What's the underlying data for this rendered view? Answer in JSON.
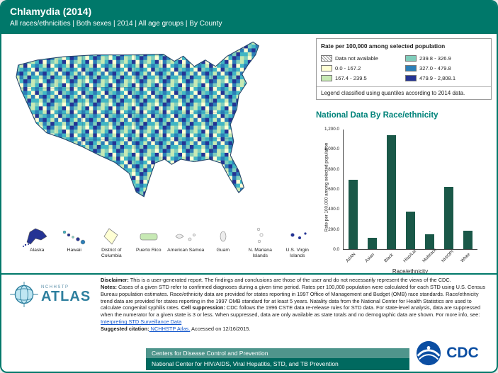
{
  "header": {
    "title": "Chlamydia (2014)",
    "subtitle": "All races/ethnicities | Both sexes | 2014 | All age groups | By County"
  },
  "legend": {
    "title": "Rate per 100,000 among selected population",
    "items": [
      {
        "label": "Data not available",
        "color": "hatch"
      },
      {
        "label": "0.0 - 167.2",
        "color": "#FFFFD4"
      },
      {
        "label": "167.4 - 239.5",
        "color": "#C7E9B4"
      },
      {
        "label": "239.8 - 326.9",
        "color": "#7FCDBB"
      },
      {
        "label": "327.0 - 479.8",
        "color": "#2C7FB8"
      },
      {
        "label": "479.9 - 2,808.1",
        "color": "#253494"
      }
    ],
    "footnote": "Legend classified using quantiles according to 2014 data."
  },
  "insets": [
    {
      "label": "Alaska"
    },
    {
      "label": "Hawaii"
    },
    {
      "label": "District of Columbia"
    },
    {
      "label": "Puerto Rico"
    },
    {
      "label": "American Samoa"
    },
    {
      "label": "Guam"
    },
    {
      "label": "N. Mariana Islands"
    },
    {
      "label": "U.S. Virgin Islands"
    }
  ],
  "chart_data": {
    "type": "bar",
    "title": "National Data By Race/ethnicity",
    "categories": [
      "AI/AN",
      "Asian",
      "Black",
      "Hisp/Lat",
      "Multirace",
      "NH/OPI",
      "White"
    ],
    "values": [
      690,
      115,
      1140,
      375,
      150,
      625,
      185
    ],
    "xlabel": "Race/ethnicity",
    "ylabel": "Rate per 100,000 among selected population",
    "ylim": [
      0,
      1200
    ],
    "yticks": [
      "0.0",
      "200.0",
      "400.0",
      "600.0",
      "800.0",
      "1,000.0",
      "1,200.0"
    ],
    "bar_color": "#1A5848",
    "grid": false,
    "legend_position": "none"
  },
  "footer": {
    "logo": {
      "org": "NCHHSTP",
      "name": "ATLAS"
    },
    "disclaimer_label": "Disclaimer:",
    "disclaimer_text": " This is a user-generated report. The findings and conclusions are those of the user and do not necessarily represent the views of the CDC.",
    "notes_label": "Notes:",
    "notes_text": " Cases of a given STD refer to confirmed diagnoses during a given time period. Rates per 100,000 population were calculated for each STD using U.S. Census Bureau population estimates. Race/ethnicity data are provided for states reporting in 1997 Office of Management and Budget (OMB) race standards. Race/ethnicity trend data are provided for states reporting in the 1997 OMB standard for at least 5 years. Natality data from the National Center for Health Statistics are used to calculate congenital syphilis rates.",
    "suppression_label": " Cell suppression:",
    "suppression_text": " CDC follows the 1996 CSTE data re-release rules for STD data. For state-level analysis, data are suppressed when the numerator for a given state is 3 or less. When suppressed, data are only available as state totals and no demographic data are shown. For more info, see: ",
    "more_info_link": "Interpreting STD Surveillance Data",
    "citation_label": "Suggested citation:",
    "citation_link": " NCHHSTP Atlas.",
    "citation_text": " Accessed on 12/16/2015.",
    "bar1": "Centers for Disease Control and Prevention",
    "bar2": "National Center for HIV/AIDS, Viral Hepatitis, STD, and TB Prevention",
    "cdc_logo": "CDC"
  }
}
